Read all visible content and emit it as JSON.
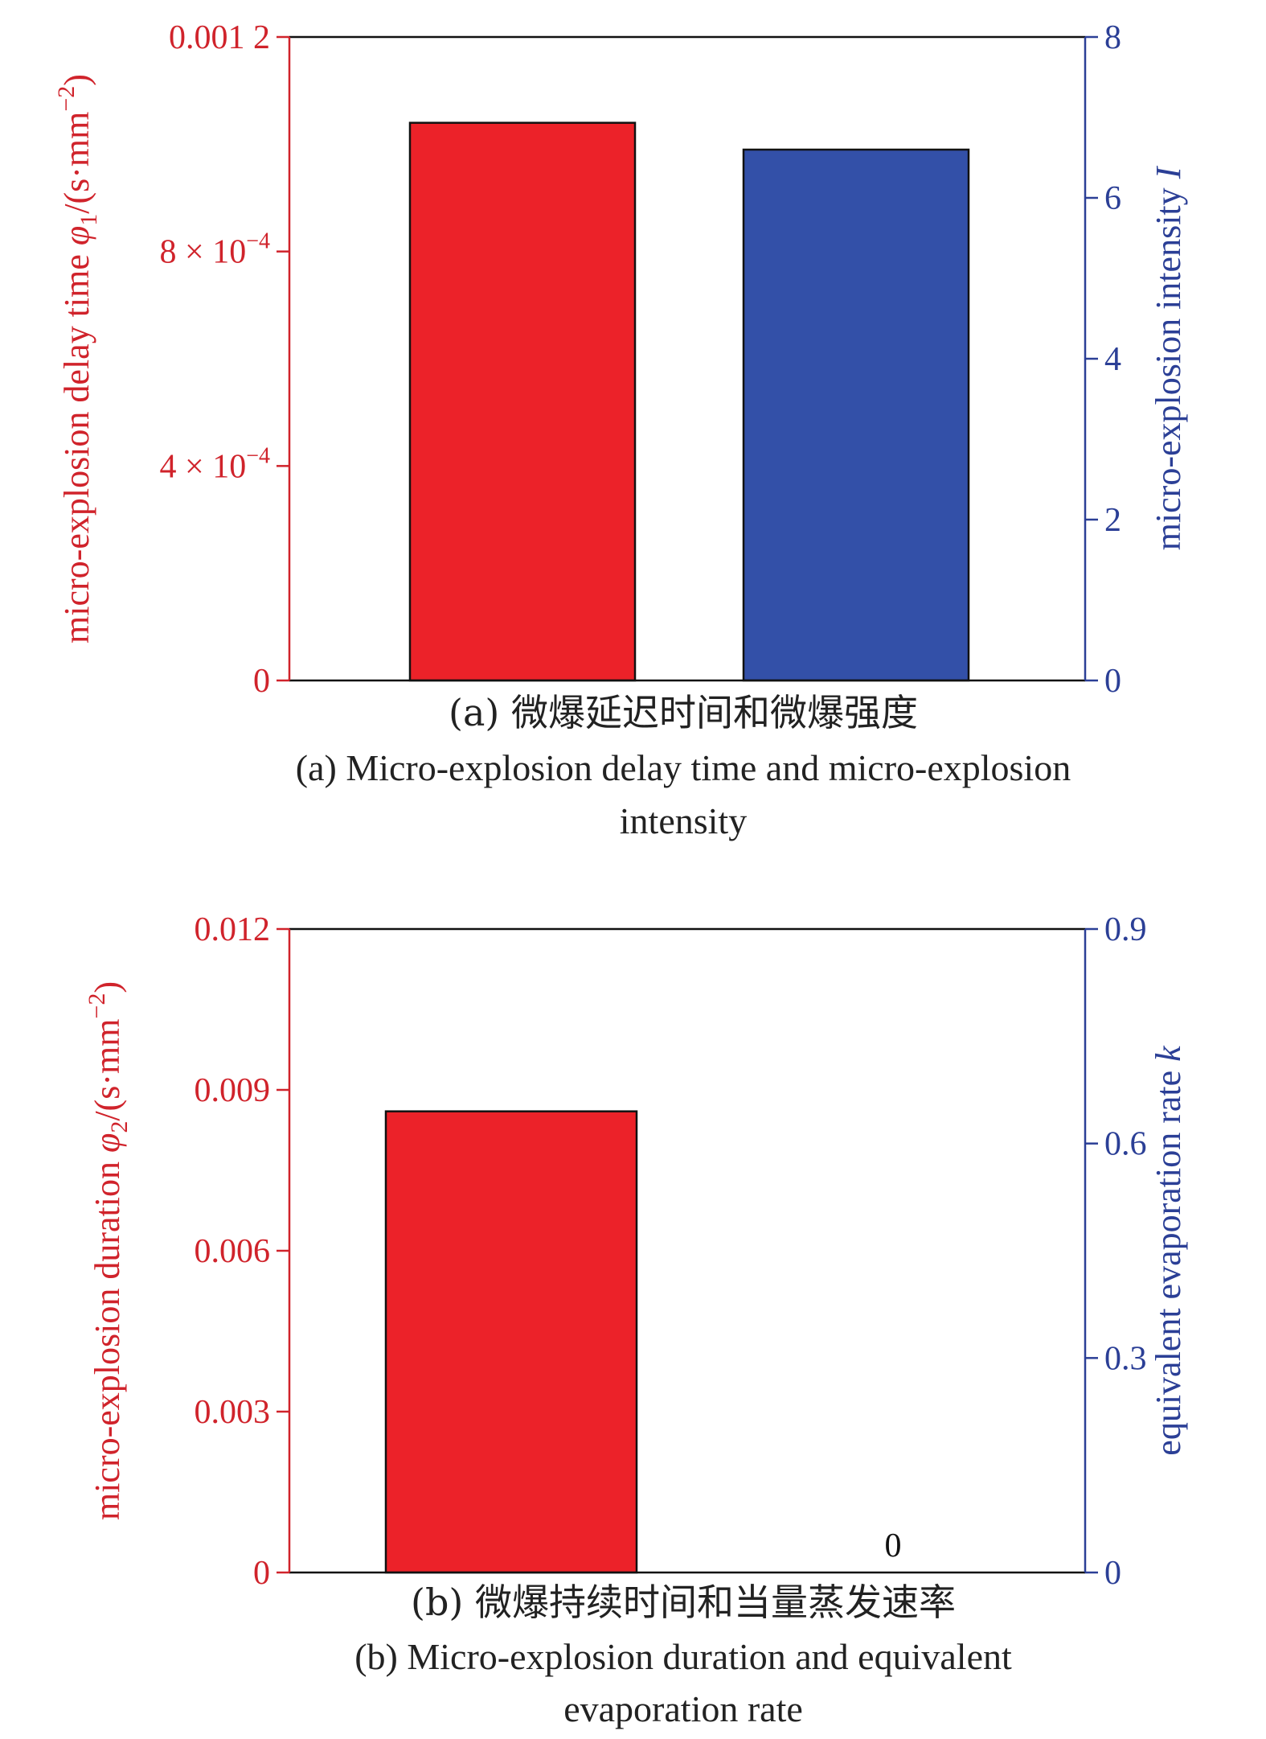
{
  "colors": {
    "left": "#d0232b",
    "right": "#2b3f96",
    "red_bar": "#ec2229",
    "blue_bar": "#3350a8",
    "frame": "#111111"
  },
  "chart_data": [
    {
      "type": "bar",
      "caption_cn": "(a) 微爆延迟时间和微爆强度",
      "caption_en_1": "(a) Micro-explosion delay time and micro-explosion",
      "caption_en_2": "intensity",
      "left_axis": {
        "label_prefix": "micro-explosion delay time ",
        "label_symbol": "φ",
        "label_sub": "1",
        "label_unit_pre": "/(s·mm",
        "label_sup": "−2",
        "label_unit_post": ")",
        "ylim": [
          0,
          0.0012
        ],
        "ticks": [
          {
            "v": 0,
            "text": "0"
          },
          {
            "v": 0.0004,
            "text": "4 × 10",
            "sup": "−4"
          },
          {
            "v": 0.0008,
            "text": "8 × 10",
            "sup": "−4"
          },
          {
            "v": 0.0012,
            "text": "0.001 2"
          }
        ]
      },
      "right_axis": {
        "label_prefix": "micro-explosion intensity ",
        "label_symbol": "I",
        "ylim": [
          0,
          8
        ],
        "ticks": [
          {
            "v": 0,
            "text": "0"
          },
          {
            "v": 2,
            "text": "2"
          },
          {
            "v": 4,
            "text": "4"
          },
          {
            "v": 6,
            "text": "6"
          },
          {
            "v": 8,
            "text": "8"
          }
        ]
      },
      "bars": [
        {
          "axis": "left",
          "value": 0.00104,
          "color": "red_bar"
        },
        {
          "axis": "right",
          "value": 6.6,
          "color": "blue_bar"
        }
      ],
      "value_labels": []
    },
    {
      "type": "bar",
      "caption_cn": "(b) 微爆持续时间和当量蒸发速率",
      "caption_en_1": "(b) Micro-explosion duration and equivalent",
      "caption_en_2": "evaporation rate",
      "left_axis": {
        "label_prefix": "micro-explosion duration ",
        "label_symbol": "φ",
        "label_sub": "2",
        "label_unit_pre": "/(s·mm",
        "label_sup": "−2",
        "label_unit_post": ")",
        "ylim": [
          0,
          0.012
        ],
        "ticks": [
          {
            "v": 0,
            "text": "0"
          },
          {
            "v": 0.003,
            "text": "0.003"
          },
          {
            "v": 0.006,
            "text": "0.006"
          },
          {
            "v": 0.009,
            "text": "0.009"
          },
          {
            "v": 0.012,
            "text": "0.012"
          }
        ]
      },
      "right_axis": {
        "label_prefix": "equivalent evaporation rate ",
        "label_symbol": "k",
        "ylim": [
          0,
          0.9
        ],
        "ticks": [
          {
            "v": 0,
            "text": "0"
          },
          {
            "v": 0.3,
            "text": "0.3"
          },
          {
            "v": 0.6,
            "text": "0.6"
          },
          {
            "v": 0.9,
            "text": "0.9"
          }
        ]
      },
      "bars": [
        {
          "axis": "left",
          "value": 0.0086,
          "color": "red_bar"
        },
        {
          "axis": "right",
          "value": 0,
          "color": "blue_bar"
        }
      ],
      "value_labels": [
        {
          "bar": 1,
          "text": "0"
        }
      ]
    }
  ]
}
